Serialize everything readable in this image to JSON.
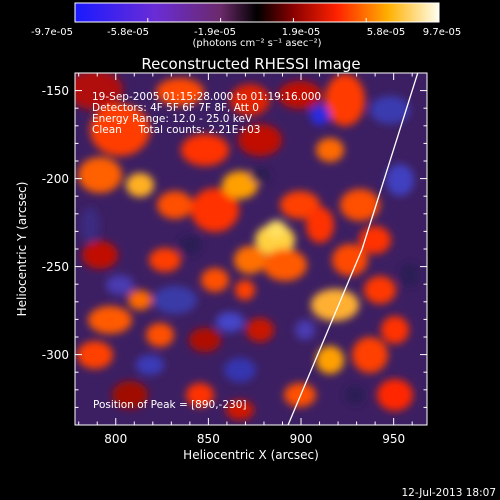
{
  "chart_data": {
    "type": "heatmap",
    "title": "Reconstructed RHESSI Image",
    "xlabel": "Heliocentric X (arcsec)",
    "ylabel": "Heliocentric Y (arcsec)",
    "xlim": [
      778,
      968
    ],
    "ylim": [
      -340,
      -140
    ],
    "x_ticks": [
      800,
      850,
      900,
      950
    ],
    "y_ticks": [
      -150,
      -200,
      -250,
      -300
    ],
    "colorbar": {
      "tick_labels": [
        "-9.7e-05",
        "-5.8e-05",
        "-1.9e-05",
        "1.9e-05",
        "5.8e-05",
        "9.7e-05"
      ],
      "unit_label": "(photons cm⁻² s⁻¹ asec⁻²)",
      "range": [
        -9.7e-05,
        9.7e-05
      ]
    },
    "annotations": [
      "19-Sep-2005 01:15:28.000 to 01:19:16.000",
      "Detectors: 4F 5F 6F 7F 8F, Att 0",
      "Energy Range: 12.0 - 25.0 keV",
      "Clean     Total counts: 2.21E+03",
      "Position of Peak = [890,-230]"
    ],
    "peak_position": [
      890,
      -230
    ],
    "limb_line": [
      [
        893,
        -340
      ],
      [
        933,
        -240
      ],
      [
        963,
        -140
      ]
    ],
    "timestamp": "12-Jul-2013 18:07",
    "colors": {
      "background": "#000000",
      "text": "#ffffff",
      "limb": "#ffffff"
    }
  }
}
